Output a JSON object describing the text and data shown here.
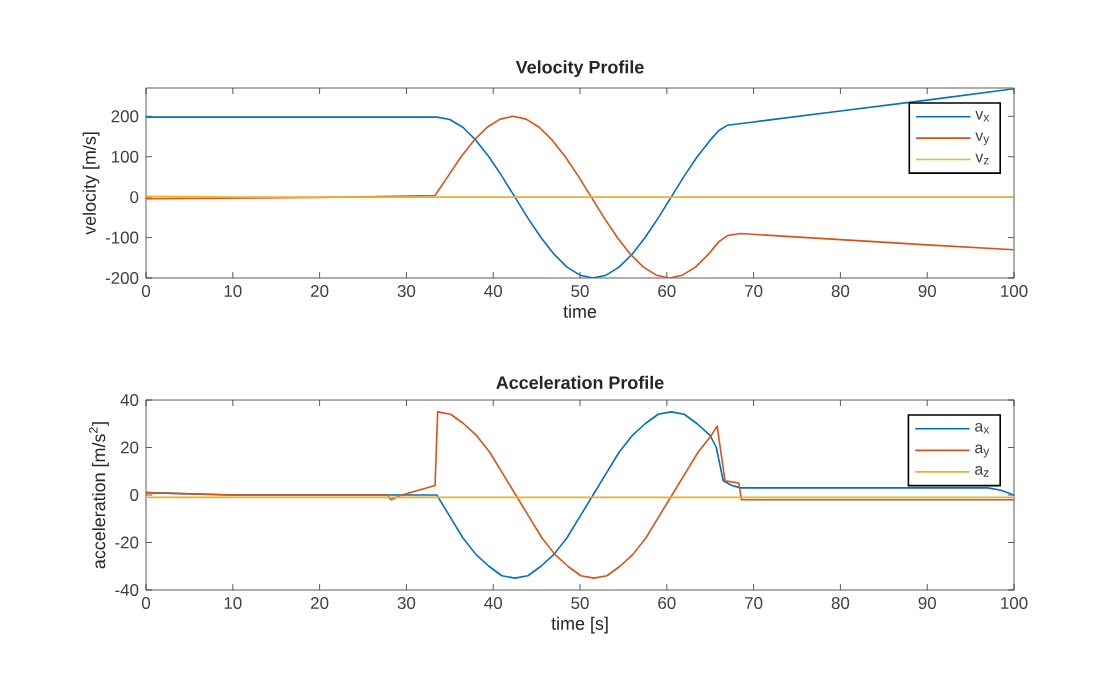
{
  "chart_data": [
    {
      "type": "line",
      "title": "Velocity Profile",
      "xlabel": "time",
      "ylabel": "velocity [m/s]",
      "xlim": [
        0,
        100
      ],
      "ylim": [
        -200,
        270
      ],
      "xticks": [
        0,
        10,
        20,
        30,
        40,
        50,
        60,
        70,
        80,
        90,
        100
      ],
      "yticks": [
        -200,
        -100,
        0,
        100,
        200
      ],
      "legend": "top right",
      "series": [
        {
          "name": "v$_{x}$",
          "color": "#0072bd",
          "x": [
            0,
            33.5,
            35,
            36.5,
            38,
            39.5,
            41,
            42.5,
            44,
            45.5,
            47,
            48.5,
            50,
            51.5,
            53,
            54.5,
            56,
            57.5,
            59,
            60.5,
            62,
            63.5,
            65,
            66,
            67,
            70,
            80,
            90,
            100
          ],
          "values": [
            198,
            198,
            192,
            173,
            141,
            100,
            52,
            0,
            -52,
            -100,
            -141,
            -173,
            -193,
            -200,
            -193,
            -173,
            -141,
            -100,
            -52,
            0,
            52,
            100,
            141,
            165,
            178,
            186,
            213,
            240,
            268
          ]
        },
        {
          "name": "v$_{y}$",
          "color": "#d95319",
          "x": [
            0,
            20,
            33.3,
            34.8,
            36.3,
            37.8,
            39.3,
            40.8,
            42.3,
            43.8,
            45.3,
            46.8,
            48.3,
            49.8,
            51.3,
            52.8,
            54.3,
            55.8,
            57.3,
            58.8,
            60.3,
            61.8,
            63.3,
            64.8,
            66,
            67,
            68.5,
            80,
            90,
            100
          ],
          "values": [
            -4,
            -1,
            4,
            52,
            100,
            141,
            173,
            193,
            200,
            193,
            173,
            141,
            100,
            52,
            0,
            -52,
            -100,
            -141,
            -173,
            -193,
            -200,
            -193,
            -173,
            -141,
            -110,
            -95,
            -90,
            -105,
            -118,
            -130
          ]
        },
        {
          "name": "v$_{z}$",
          "color": "#edb120",
          "x": [
            0,
            10,
            100
          ],
          "values": [
            2,
            0,
            0
          ]
        }
      ]
    },
    {
      "type": "line",
      "title": "Acceleration Profile",
      "xlabel": "time [s]",
      "ylabel": "acceleration [m/s$^{2}$]",
      "xlim": [
        0,
        100
      ],
      "ylim": [
        -40,
        40
      ],
      "xticks": [
        0,
        10,
        20,
        30,
        40,
        50,
        60,
        70,
        80,
        90,
        100
      ],
      "yticks": [
        -40,
        -20,
        0,
        20,
        40
      ],
      "legend": "top right",
      "series": [
        {
          "name": "a$_{x}$",
          "color": "#0072bd",
          "x": [
            0,
            10,
            33.5,
            35,
            36.5,
            38,
            39.5,
            41,
            42.5,
            44,
            45.5,
            47,
            48.5,
            50,
            51.5,
            53,
            54.5,
            56,
            57.5,
            59,
            60.5,
            62,
            63.5,
            65,
            65.7,
            66.5,
            67.5,
            68.5,
            97,
            98.5,
            100
          ],
          "values": [
            1,
            0,
            0,
            -9,
            -18,
            -25,
            -30,
            -34,
            -35,
            -34,
            -30,
            -25,
            -18,
            -9,
            0,
            9,
            18,
            25,
            30,
            34,
            35,
            34,
            30,
            25,
            20,
            6,
            4,
            3,
            3,
            2,
            0
          ]
        },
        {
          "name": "a$_{y}$",
          "color": "#d95319",
          "x": [
            0,
            10,
            27.8,
            28.2,
            29.5,
            33.3,
            33.6,
            35.1,
            36.6,
            38.1,
            39.6,
            41.1,
            42.6,
            44.1,
            45.6,
            47.1,
            48.6,
            50.1,
            51.6,
            53.1,
            54.6,
            56.1,
            57.6,
            59.1,
            60.6,
            62.1,
            63.6,
            65.1,
            65.8,
            66.7,
            68.3,
            68.6,
            100
          ],
          "values": [
            1,
            0,
            0,
            -2,
            0,
            4,
            35,
            34,
            30,
            25,
            18,
            9,
            0,
            -9,
            -18,
            -25,
            -30,
            -34,
            -35,
            -34,
            -30,
            -25,
            -18,
            -9,
            0,
            9,
            18,
            25,
            29,
            6,
            5,
            -2,
            -2
          ]
        },
        {
          "name": "a$_{z}$",
          "color": "#edb120",
          "x": [
            0,
            100
          ],
          "values": [
            -1,
            -1
          ]
        }
      ]
    }
  ]
}
